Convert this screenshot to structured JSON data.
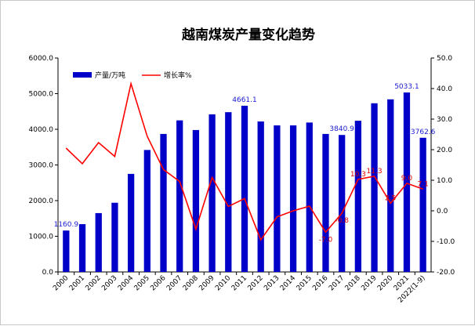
{
  "colors": {
    "bar": "#0000c8",
    "line": "#ff0000",
    "bar_label": "#1a1ad0",
    "line_label": "#e00000",
    "axis": "#000000"
  },
  "chart_data": {
    "type": "bar",
    "title": "越南煤炭产量变化趋势",
    "categories": [
      "2000",
      "2001",
      "2002",
      "2003",
      "2004",
      "2005",
      "2006",
      "2007",
      "2008",
      "2009",
      "2010",
      "2011",
      "2012",
      "2013",
      "2014",
      "2015",
      "2016",
      "2017",
      "2018",
      "2019",
      "2020",
      "2021",
      "2022(1-9)"
    ],
    "series": [
      {
        "name": "产量/万吨",
        "type": "bar",
        "axis": "left",
        "values": [
          1160.9,
          1340,
          1650,
          1940,
          2750,
          3420,
          3870,
          4250,
          3980,
          4420,
          4480,
          4661.1,
          4220,
          4110,
          4110,
          4190,
          3870,
          3840.9,
          4240,
          4730,
          4840,
          5033.1,
          3762.6
        ]
      },
      {
        "name": "增长率%",
        "type": "line",
        "axis": "right",
        "values": [
          20.5,
          15.4,
          22.3,
          17.8,
          41.6,
          24.4,
          13.5,
          9.6,
          -6.0,
          10.9,
          1.4,
          4.0,
          -9.5,
          -2.0,
          0.0,
          1.5,
          -7.0,
          -0.8,
          10.3,
          11.3,
          2.5,
          9.0,
          7.1
        ]
      }
    ],
    "ylim_left": [
      0,
      6000
    ],
    "yticks_left": [
      "0.0",
      "1000.0",
      "2000.0",
      "3000.0",
      "4000.0",
      "5000.0",
      "6000.0"
    ],
    "ylim_right": [
      -20,
      50
    ],
    "yticks_right": [
      "-20.0",
      "-10.0",
      "0.0",
      "10.0",
      "20.0",
      "30.0",
      "40.0",
      "50.0"
    ],
    "grid": false,
    "legend_position": "top-left",
    "bar_labels": [
      {
        "index": 0,
        "text": "1160.9"
      },
      {
        "index": 11,
        "text": "4661.1"
      },
      {
        "index": 17,
        "text": "3840.9"
      },
      {
        "index": 21,
        "text": "5033.1"
      },
      {
        "index": 22,
        "text": "3762.6"
      }
    ],
    "line_labels": [
      {
        "index": 16,
        "text": "-7.0"
      },
      {
        "index": 17,
        "text": "-0.8"
      },
      {
        "index": 18,
        "text": "10.3"
      },
      {
        "index": 19,
        "text": "11.3"
      },
      {
        "index": 20,
        "text": "2.5"
      },
      {
        "index": 21,
        "text": "9.0"
      },
      {
        "index": 22,
        "text": "7.1"
      }
    ]
  }
}
